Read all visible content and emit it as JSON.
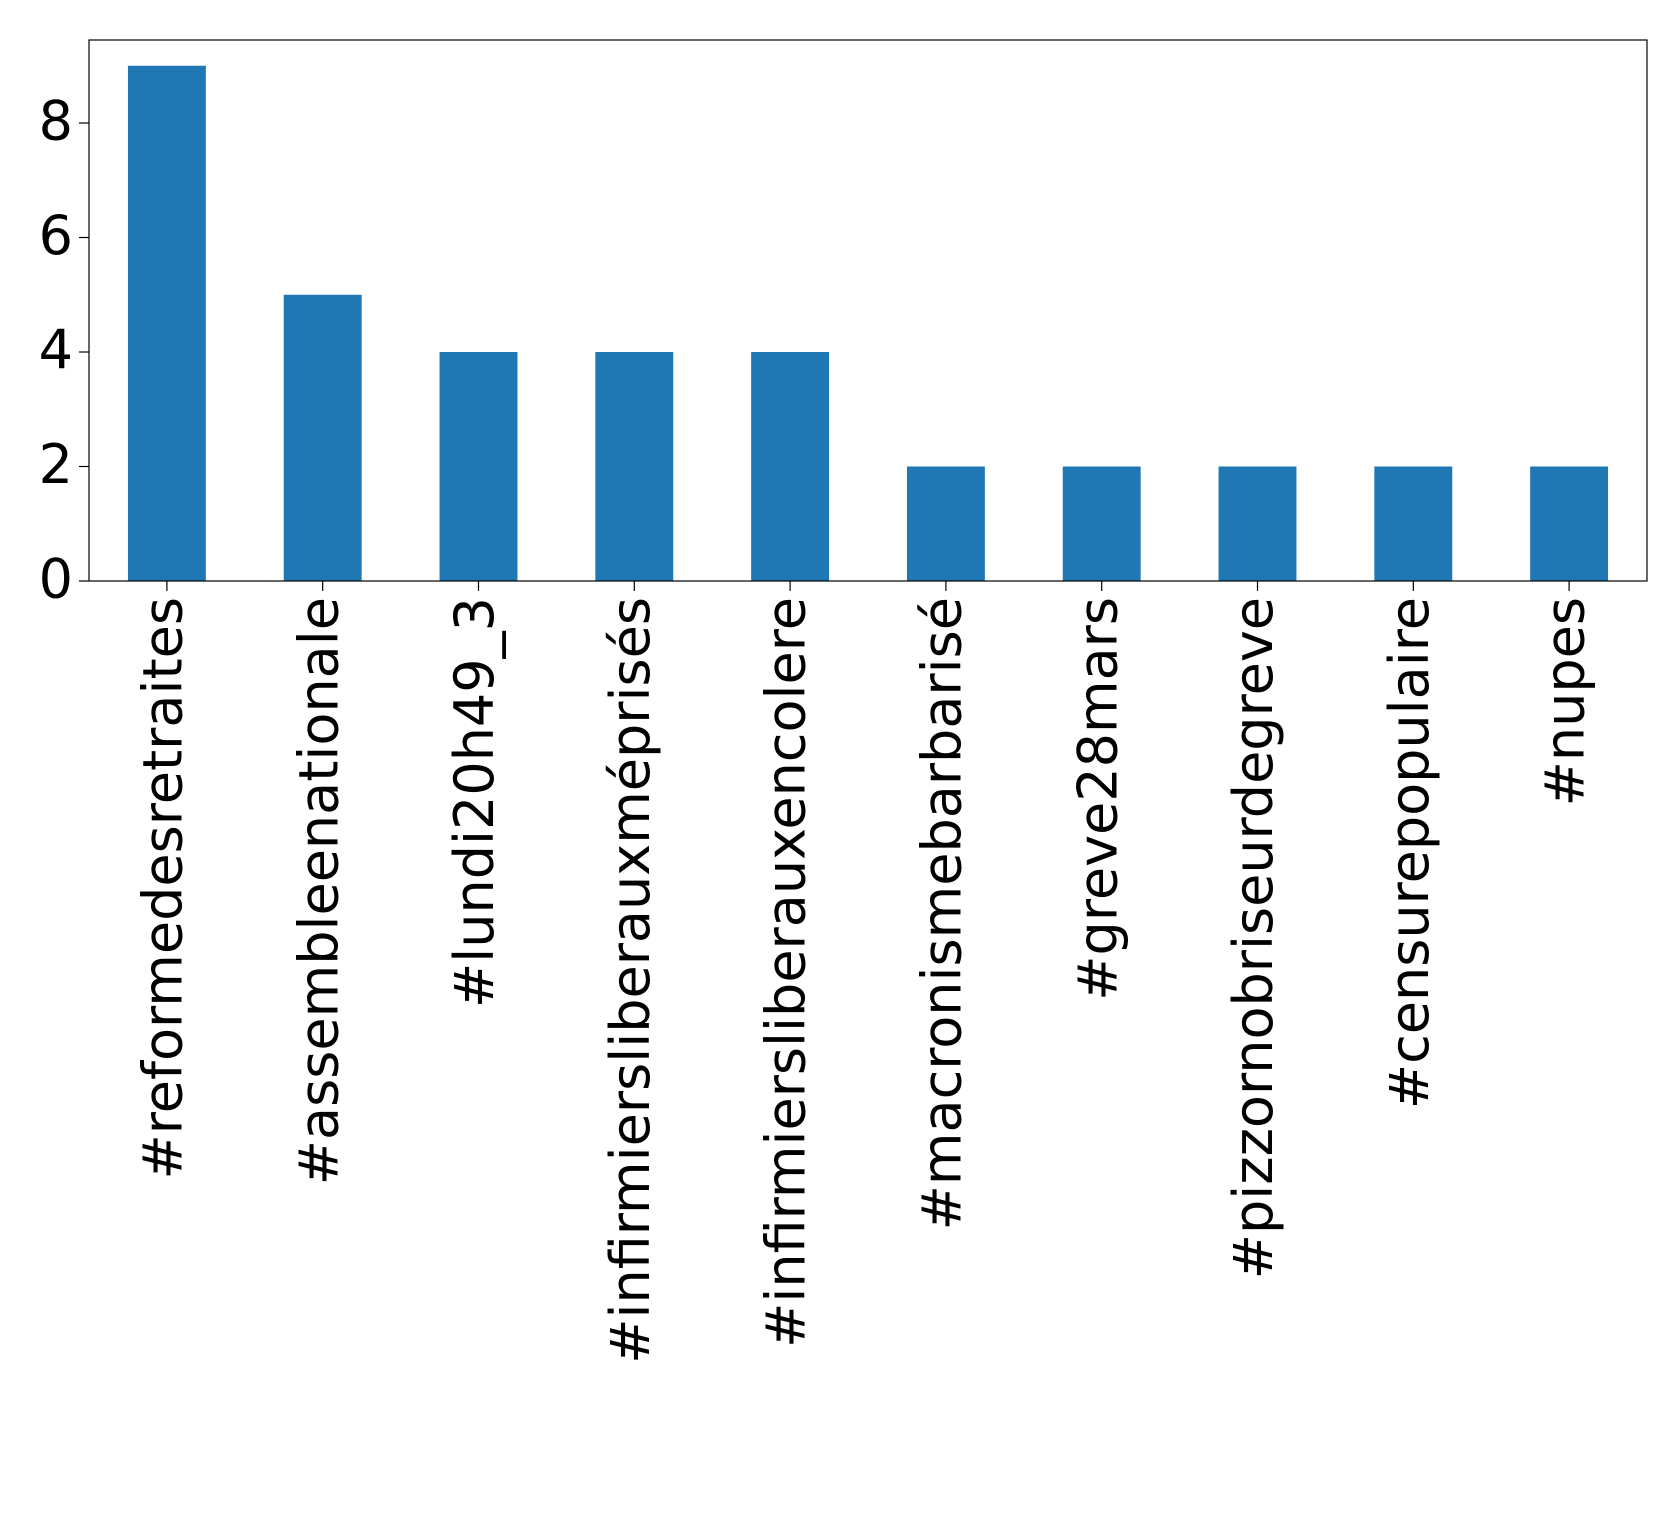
{
  "chart_data": {
    "type": "bar",
    "categories": [
      "#reformedesretraites",
      "#assembleenationale",
      "#lundi20h49_3",
      "#infirmiersliberauxméprisés",
      "#infirmiersliberauxencolere",
      "#macronismebarbarisé",
      "#greve28mars",
      "#pizzornobriseurdegreve",
      "#censurepopulaire",
      "#nupes"
    ],
    "values": [
      9,
      5,
      4,
      4,
      4,
      2,
      2,
      2,
      2,
      2
    ],
    "color": "#1f77b4",
    "ylim": [
      0,
      9.45
    ],
    "yticks": [
      0,
      2,
      4,
      6,
      8
    ],
    "grid": false
  }
}
